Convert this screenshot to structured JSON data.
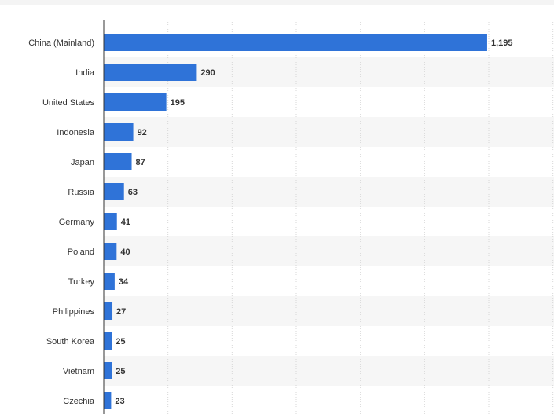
{
  "chart_data": {
    "type": "bar",
    "orientation": "horizontal",
    "categories": [
      "China (Mainland)",
      "India",
      "United States",
      "Indonesia",
      "Japan",
      "Russia",
      "Germany",
      "Poland",
      "Turkey",
      "Philippines",
      "South Korea",
      "Vietnam",
      "Czechia"
    ],
    "values": [
      1195,
      290,
      195,
      92,
      87,
      63,
      41,
      40,
      34,
      27,
      25,
      25,
      23
    ],
    "value_labels": [
      "1,195",
      "290",
      "195",
      "92",
      "87",
      "63",
      "41",
      "40",
      "34",
      "27",
      "25",
      "25",
      "23"
    ],
    "xlim": [
      0,
      1400
    ],
    "grid": true,
    "colors": {
      "bar": "#2f73d8",
      "stripe": "#f6f6f6",
      "grid": "#d7d7d7",
      "axis": "#333333"
    }
  }
}
